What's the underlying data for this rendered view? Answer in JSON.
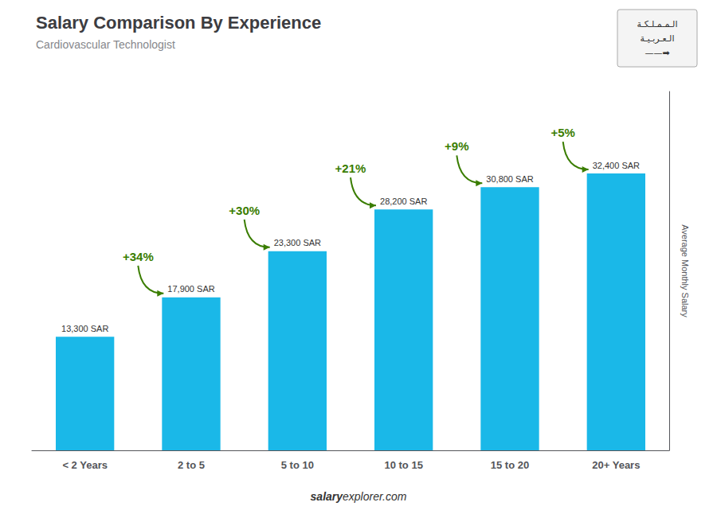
{
  "chart_data": {
    "type": "bar",
    "title": "Salary Comparison By Experience",
    "subtitle": "Cardiovascular Technologist",
    "ylabel": "Average Monthly Salary",
    "categories": [
      "< 2 Years",
      "2 to 5",
      "5 to 10",
      "10 to 15",
      "15 to 20",
      "20+ Years"
    ],
    "values": [
      13300,
      17900,
      23300,
      28200,
      30800,
      32400
    ],
    "value_labels": [
      "13,300 SAR",
      "17,900 SAR",
      "23,300 SAR",
      "28,200 SAR",
      "30,800 SAR",
      "32,400 SAR"
    ],
    "data_labels": true,
    "color": "#1ab8e8",
    "ylim": [
      0,
      42000
    ],
    "tick_labels": "x",
    "grid": false,
    "annotations": [
      "+34%",
      "+30%",
      "+21%",
      "+9%",
      "+5%"
    ],
    "footer": [
      "salary",
      "explorer.com"
    ],
    "badge_text": [
      "الـمـمـلـكـة",
      "الـعـربـيـة",
      "——➡"
    ]
  }
}
